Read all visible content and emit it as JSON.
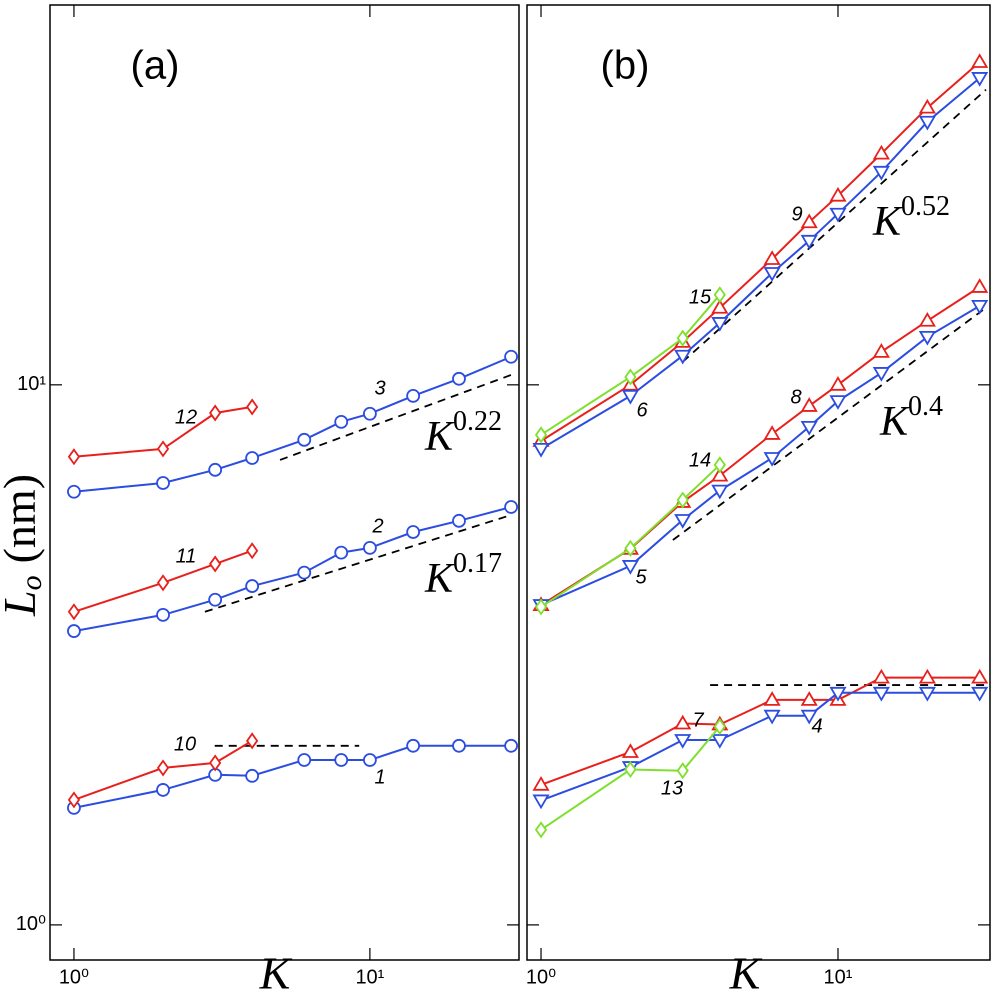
{
  "chart_data": [
    {
      "type": "line",
      "xlog": true,
      "ylog": true,
      "panel_label": "(a)",
      "xlabel": "K",
      "ylabel": {
        "base": "L",
        "sub": "o",
        "unit": "(nm)"
      },
      "xlim": [
        0.83,
        31.9
      ],
      "ylim": [
        0.861,
        50.5
      ],
      "xticks": [
        {
          "value": 1,
          "label": "10⁰"
        },
        {
          "value": 10,
          "label": "10¹"
        }
      ],
      "yticks": [
        {
          "value": 1,
          "label": "10⁰"
        },
        {
          "value": 10,
          "label": "10¹"
        }
      ],
      "ytick_labels": true,
      "series": [
        {
          "name": "1",
          "color": "#2b4de0",
          "marker": "circle",
          "x": [
            1,
            2,
            3,
            4,
            6,
            8,
            10,
            14,
            20,
            30
          ],
          "values": [
            1.647,
            1.778,
            1.896,
            1.888,
            2.02,
            2.02,
            2.02,
            2.146,
            2.146,
            2.146
          ]
        },
        {
          "name": "10",
          "color": "#e8201c",
          "marker": "diamond",
          "x": [
            1,
            2,
            3,
            4
          ],
          "values": [
            1.704,
            1.953,
            1.995,
            2.192
          ]
        },
        {
          "name": "2",
          "color": "#2b4de0",
          "marker": "circle",
          "x": [
            1,
            2,
            3,
            4,
            6,
            8,
            10,
            14,
            20,
            30
          ],
          "values": [
            3.5,
            3.75,
            4.0,
            4.24,
            4.49,
            4.89,
            4.99,
            5.34,
            5.6,
            5.94
          ]
        },
        {
          "name": "11",
          "color": "#e8201c",
          "marker": "diamond",
          "x": [
            1,
            2,
            3,
            4
          ],
          "values": [
            3.8,
            4.3,
            4.66,
            4.93
          ]
        },
        {
          "name": "3",
          "color": "#2b4de0",
          "marker": "circle",
          "x": [
            1,
            2,
            3,
            4,
            6,
            8,
            10,
            14,
            20,
            30
          ],
          "values": [
            6.34,
            6.58,
            6.96,
            7.32,
            7.91,
            8.54,
            8.84,
            9.54,
            10.26,
            11.27
          ]
        },
        {
          "name": "12",
          "color": "#e8201c",
          "marker": "diamond",
          "x": [
            1,
            2,
            3,
            4
          ],
          "values": [
            7.36,
            7.61,
            8.87,
            9.1
          ]
        }
      ],
      "guides": [
        {
          "x": [
            2.99,
            9.2
          ],
          "values": [
            2.146,
            2.146
          ]
        },
        {
          "x": [
            2.77,
            30
          ],
          "values": [
            3.8,
            5.74
          ],
          "label": "K",
          "exponent": "0.17"
        },
        {
          "x": [
            4.97,
            30
          ],
          "values": [
            7.26,
            10.43
          ],
          "label": "K",
          "exponent": "0.22"
        }
      ]
    },
    {
      "type": "line",
      "xlog": true,
      "ylog": true,
      "panel_label": "(b)",
      "xlabel": "K",
      "xlim": [
        0.897,
        32.5
      ],
      "ylim": [
        0.861,
        50.5
      ],
      "xticks": [
        {
          "value": 1,
          "label": "10⁰"
        },
        {
          "value": 10,
          "label": "10¹"
        }
      ],
      "yticks": [
        1,
        10
      ],
      "ytick_labels": false,
      "series": [
        {
          "name": "7",
          "color": "#e8201c",
          "marker": "triangle-up",
          "x": [
            1,
            2,
            3,
            4,
            6,
            8,
            10,
            14,
            20,
            30
          ],
          "values": [
            1.817,
            2.09,
            2.36,
            2.35,
            2.61,
            2.61,
            2.61,
            2.87,
            2.87,
            2.87
          ]
        },
        {
          "name": "4",
          "color": "#2b4de0",
          "marker": "triangle-down",
          "x": [
            1,
            2,
            3,
            4,
            6,
            8,
            10,
            14,
            20,
            30
          ],
          "values": [
            1.7,
            1.96,
            2.2,
            2.2,
            2.44,
            2.44,
            2.69,
            2.69,
            2.69,
            2.69
          ]
        },
        {
          "name": "13",
          "color": "#7ee02c",
          "marker": "diamond",
          "x": [
            1,
            2,
            3,
            4
          ],
          "values": [
            1.5,
            1.94,
            1.93,
            2.33
          ]
        },
        {
          "name": "8",
          "color": "#e8201c",
          "marker": "triangle-up",
          "x": [
            1,
            2,
            3,
            4,
            6,
            8,
            10,
            14,
            20,
            30
          ],
          "values": [
            3.91,
            4.97,
            6.07,
            6.79,
            8.11,
            9.14,
            10.0,
            11.51,
            13.14,
            15.18
          ]
        },
        {
          "name": "5",
          "color": "#2b4de0",
          "marker": "triangle-down",
          "x": [
            1,
            2,
            3,
            4,
            6,
            8,
            10,
            14,
            20,
            30
          ],
          "values": [
            3.91,
            4.62,
            5.62,
            6.37,
            7.32,
            8.36,
            9.33,
            10.52,
            12.27,
            14.0
          ]
        },
        {
          "name": "14",
          "color": "#7ee02c",
          "marker": "diamond",
          "x": [
            1,
            2,
            3,
            4
          ],
          "values": [
            3.88,
            4.98,
            6.12,
            7.11
          ]
        },
        {
          "name": "9",
          "color": "#e8201c",
          "marker": "triangle-up",
          "x": [
            1,
            2,
            3,
            4,
            6,
            8,
            10,
            14,
            20,
            30
          ],
          "values": [
            7.87,
            10.0,
            12.01,
            13.89,
            17.1,
            20.0,
            22.4,
            26.8,
            32.6,
            39.6
          ]
        },
        {
          "name": "6",
          "color": "#2b4de0",
          "marker": "triangle-down",
          "x": [
            1,
            2,
            3,
            4,
            6,
            8,
            10,
            14,
            20,
            30
          ],
          "values": [
            7.61,
            9.54,
            11.32,
            13.02,
            16.11,
            18.48,
            20.74,
            24.8,
            30.7,
            37.0
          ]
        },
        {
          "name": "15",
          "color": "#7ee02c",
          "marker": "diamond",
          "x": [
            1,
            2,
            3,
            4
          ],
          "values": [
            8.08,
            10.34,
            12.2,
            14.68
          ]
        }
      ],
      "guides": [
        {
          "x": [
            3.71,
            31.5
          ],
          "values": [
            2.78,
            2.78
          ]
        },
        {
          "x": [
            2.78,
            31.5
          ],
          "values": [
            5.16,
            13.89
          ],
          "label": "K",
          "exponent": "0.4"
        },
        {
          "x": [
            3.0,
            31.5
          ],
          "values": [
            11.03,
            35.2
          ],
          "label": "K",
          "exponent": "0.52"
        }
      ]
    }
  ]
}
